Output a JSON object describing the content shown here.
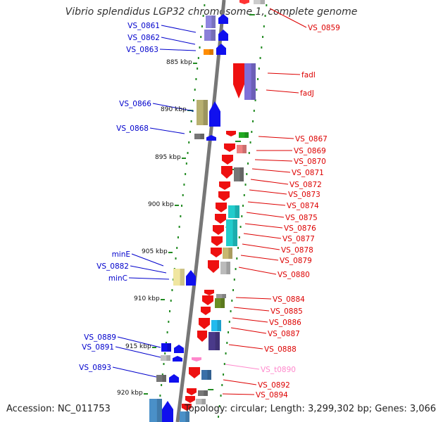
{
  "title": "Vibrio splendidus LGP32 chromosome 1, complete genome",
  "footer": {
    "accession": "Accession: NC_011753",
    "topology": "Topology: circular; Length: 3,299,302 bp; Genes: 3,066"
  },
  "colors": {
    "left_label": "#0000cc",
    "right_label": "#dd0000",
    "trna_label": "#ff88cc",
    "ruler": "#777777",
    "tick": "#228b22"
  },
  "kbp_labels": [
    "885 kbp",
    "890 kbp",
    "895 kbp",
    "900 kbp",
    "905 kbp",
    "910 kbp",
    "915 kbp",
    "920 kbp"
  ],
  "left_labels": [
    "VS_0861",
    "VS_0862",
    "VS_0863",
    "VS_0866",
    "VS_0868",
    "minE",
    "VS_0882",
    "minC",
    "VS_0889",
    "VS_0891",
    "VS_0893"
  ],
  "right_labels": [
    "VS_0859",
    "fadI",
    "fadJ",
    "VS_0867",
    "VS_0869",
    "VS_0870",
    "VS_0871",
    "VS_0872",
    "VS_0873",
    "VS_0874",
    "VS_0875",
    "VS_0876",
    "VS_0877",
    "VS_0878",
    "VS_0879",
    "VS_0880",
    "VS_0884",
    "VS_0885",
    "VS_0886",
    "VS_0887",
    "VS_0888",
    "VS_t0890",
    "VS_0892",
    "VS_0894"
  ]
}
